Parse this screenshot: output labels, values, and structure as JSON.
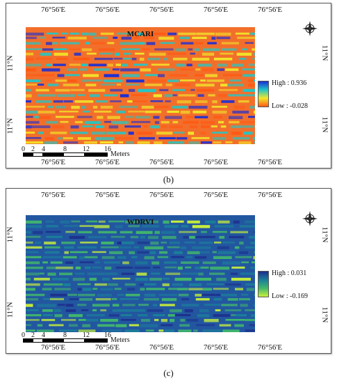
{
  "panels": [
    {
      "id": "b",
      "map_title": "MCARI",
      "top_coords": [
        "76°56'E",
        "76°56'E",
        "76°56'E",
        "76°56'E",
        "76°56'E"
      ],
      "bottom_coords": [
        "76°56'E",
        "76°56'E",
        "76°56'E",
        "76°56'E",
        "76°56'E"
      ],
      "left_coords": [
        "11°N",
        "11°N"
      ],
      "right_coords": [
        "11°N",
        "11°N"
      ],
      "legend_high": "High : 0.936",
      "legend_low": "Low : -0.028",
      "legend_colors": [
        "#1a2fd6",
        "#21c7c7",
        "#f2e82a",
        "#ff5a14"
      ],
      "map_base_color": "#f26f2b",
      "scale_ticks": [
        "0",
        "2",
        "4",
        "8",
        "12",
        "16"
      ],
      "scale_unit": "Meters",
      "caption": "(b)"
    },
    {
      "id": "c",
      "map_title": "WDRVI",
      "top_coords": [
        "76°56'E",
        "76°56'E",
        "76°56'E",
        "76°56'E",
        "76°56'E"
      ],
      "bottom_coords": [
        "76°56'E",
        "76°56'E",
        "76°56'E",
        "76°56'E",
        "76°56'E"
      ],
      "left_coords": [
        "11°N",
        "11°N"
      ],
      "right_coords": [
        "11°N",
        "11°N"
      ],
      "legend_high": "High : 0.031",
      "legend_low": "Low : -0.169",
      "legend_colors": [
        "#1d2f8c",
        "#1b7f9a",
        "#42b86a",
        "#c9f03a"
      ],
      "map_base_color": "#2257a0",
      "scale_ticks": [
        "0",
        "2",
        "4",
        "8",
        "12",
        "16"
      ],
      "scale_unit": "Meters",
      "caption": "(c)"
    }
  ],
  "icons": {
    "compass": "compass-rose-icon"
  }
}
